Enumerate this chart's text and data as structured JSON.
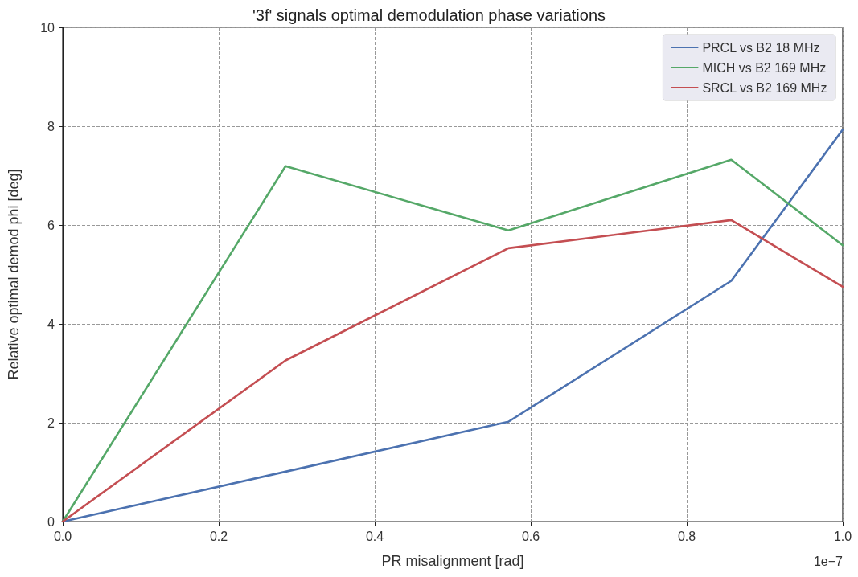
{
  "chart_data": {
    "type": "line",
    "title": "'3f' signals optimal demodulation phase variations",
    "xlabel": "PR misalignment [rad]",
    "ylabel": "Relative optimal demod phi [deg]",
    "annotations": [
      "1e−7"
    ],
    "x": [
      0,
      0.2857,
      0.5714,
      0.8571,
      1.0
    ],
    "series": [
      {
        "name": "PRCL vs B2 18 MHz",
        "color": "#4c72b0",
        "values": [
          0,
          1.01,
          2.02,
          4.87,
          7.93
        ]
      },
      {
        "name": "MICH vs B2 169 MHz",
        "color": "#55a868",
        "values": [
          0,
          7.19,
          5.89,
          7.32,
          5.59
        ]
      },
      {
        "name": "SRCL vs B2 169 MHz",
        "color": "#c44e52",
        "values": [
          0,
          3.26,
          5.53,
          6.1,
          4.75
        ]
      }
    ],
    "xlim": [
      0,
      1.0
    ],
    "xticks": [
      {
        "value": 0,
        "label": "0.0"
      },
      {
        "value": 0.2,
        "label": "0.2"
      },
      {
        "value": 0.4,
        "label": "0.4"
      },
      {
        "value": 0.6,
        "label": "0.6"
      },
      {
        "value": 0.8,
        "label": "0.8"
      },
      {
        "value": 1.0,
        "label": "1.0"
      }
    ],
    "ylim": [
      0,
      10
    ],
    "yticks": [
      0,
      2,
      4,
      6,
      8,
      10
    ],
    "grid": true,
    "legend": "top right",
    "marker": "none",
    "line_style": "solid"
  }
}
